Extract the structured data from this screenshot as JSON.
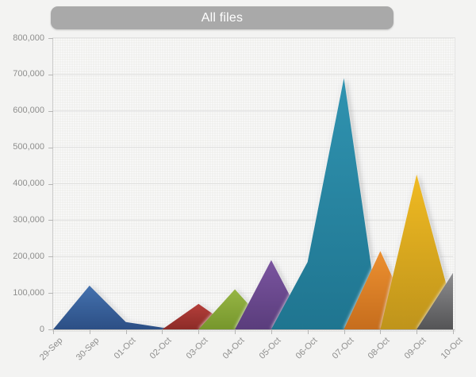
{
  "header": {
    "title": "All files",
    "bar_color": "#a9a9a9",
    "text_color": "#ffffff"
  },
  "chart_data": {
    "type": "area",
    "title": "All files",
    "categories": [
      "29-Sep",
      "30-Sep",
      "01-Oct",
      "02-Oct",
      "03-Oct",
      "04-Oct",
      "05-Oct",
      "06-Oct",
      "07-Oct",
      "08-Oct",
      "09-Oct",
      "10-Oct"
    ],
    "series": [
      {
        "name": "blue-peak-30-sep",
        "start_index": 0,
        "values": [
          0,
          120000,
          20000,
          5000,
          0
        ],
        "fill_top": "#4471ae",
        "fill_bottom": "#2c4f85"
      },
      {
        "name": "red-peak-03-oct",
        "start_index": 3,
        "values": [
          0,
          70000,
          0
        ],
        "fill_top": "#b43e3a",
        "fill_bottom": "#8c2b27"
      },
      {
        "name": "green-peak-04-oct",
        "start_index": 4,
        "values": [
          0,
          110000,
          0
        ],
        "fill_top": "#96b544",
        "fill_bottom": "#76962c"
      },
      {
        "name": "purple-peak-05-oct",
        "start_index": 5,
        "values": [
          0,
          190000,
          0
        ],
        "fill_top": "#7a549f",
        "fill_bottom": "#5a3d7c"
      },
      {
        "name": "teal-peak-07-oct",
        "start_index": 6,
        "values": [
          0,
          185000,
          690000,
          0
        ],
        "fill_top": "#3093b0",
        "fill_bottom": "#1f7590"
      },
      {
        "name": "orange-peak-08-oct",
        "start_index": 8,
        "values": [
          0,
          215000,
          0
        ],
        "fill_top": "#ec9030",
        "fill_bottom": "#c66d1d"
      },
      {
        "name": "yellow-peak-09-oct",
        "start_index": 9,
        "values": [
          0,
          425000,
          55000
        ],
        "fill_top": "#f0ba22",
        "fill_bottom": "#bf941b"
      },
      {
        "name": "gray-peak-10-oct",
        "start_index": 10,
        "values": [
          0,
          155000
        ],
        "fill_top": "#8d8d8f",
        "fill_bottom": "#545456"
      }
    ],
    "ylim": [
      0,
      800000
    ],
    "y_tick_interval": 100000,
    "y_tick_labels": [
      "800,000",
      "700,000",
      "600,000",
      "500,000",
      "400,000",
      "300,000",
      "200,000",
      "100,000",
      "0"
    ],
    "xlabel": "",
    "ylabel": "",
    "grid": true,
    "legend": false,
    "axis_text_color": "#8e8e8d"
  }
}
